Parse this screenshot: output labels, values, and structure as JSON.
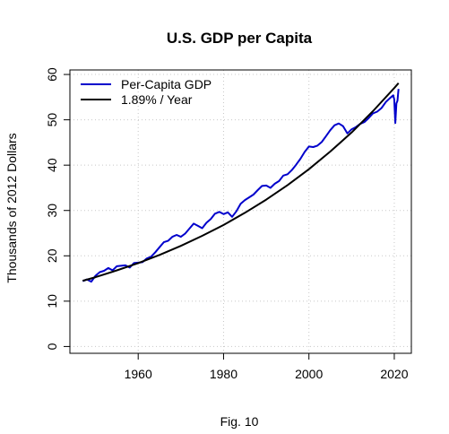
{
  "chart_data": {
    "type": "line",
    "title": "U.S. GDP per Capita",
    "xlabel": "",
    "ylabel": "Thousands of 2012 Dollars",
    "caption": "Fig. 10",
    "xlim": [
      1944,
      2024
    ],
    "ylim": [
      -1.5,
      61
    ],
    "x_ticks": [
      1960,
      1980,
      2000,
      2020
    ],
    "y_ticks": [
      0,
      10,
      20,
      30,
      40,
      50,
      60
    ],
    "grid": true,
    "legend_position": "top-left",
    "series": [
      {
        "name": "Per-Capita GDP",
        "color": "#0000cc",
        "x": [
          1947,
          1948,
          1949,
          1950,
          1951,
          1952,
          1953,
          1954,
          1955,
          1956,
          1957,
          1958,
          1959,
          1960,
          1961,
          1962,
          1963,
          1964,
          1965,
          1966,
          1967,
          1968,
          1969,
          1970,
          1971,
          1972,
          1973,
          1974,
          1975,
          1976,
          1977,
          1978,
          1979,
          1980,
          1981,
          1982,
          1983,
          1984,
          1985,
          1986,
          1987,
          1988,
          1989,
          1990,
          1991,
          1992,
          1993,
          1994,
          1995,
          1996,
          1997,
          1998,
          1999,
          2000,
          2001,
          2002,
          2003,
          2004,
          2005,
          2006,
          2007,
          2008,
          2009,
          2010,
          2011,
          2012,
          2013,
          2014,
          2015,
          2016,
          2017,
          2018,
          2019,
          2019.75,
          2020,
          2020.25,
          2020.5,
          2020.75,
          2021
        ],
        "values": [
          14.4,
          14.8,
          14.3,
          15.6,
          16.4,
          16.7,
          17.3,
          16.8,
          17.7,
          17.8,
          17.9,
          17.4,
          18.4,
          18.5,
          18.6,
          19.4,
          19.8,
          20.8,
          21.9,
          23.0,
          23.3,
          24.2,
          24.6,
          24.2,
          24.9,
          26.0,
          27.1,
          26.6,
          26.1,
          27.3,
          28.1,
          29.3,
          29.7,
          29.2,
          29.6,
          28.6,
          29.8,
          31.5,
          32.3,
          32.9,
          33.5,
          34.5,
          35.4,
          35.5,
          35.0,
          35.9,
          36.5,
          37.7,
          38.0,
          38.9,
          40.1,
          41.4,
          42.9,
          44.1,
          44.0,
          44.3,
          45.1,
          46.4,
          47.7,
          48.8,
          49.2,
          48.6,
          47.0,
          47.9,
          48.4,
          49.1,
          49.5,
          50.4,
          51.4,
          51.8,
          52.6,
          53.9,
          54.8,
          55.4,
          54.5,
          49.3,
          53.6,
          54.2,
          56.8
        ]
      },
      {
        "name": "1.89% / Year",
        "color": "#000000",
        "x": [
          1947,
          1950,
          1955,
          1960,
          1965,
          1970,
          1975,
          1980,
          1985,
          1990,
          1995,
          2000,
          2005,
          2010,
          2015,
          2020,
          2021
        ],
        "values": [
          14.5,
          15.3,
          16.8,
          18.4,
          20.2,
          22.2,
          24.4,
          26.8,
          29.5,
          32.4,
          35.6,
          39.1,
          43.0,
          47.2,
          51.9,
          57.0,
          58.1
        ]
      }
    ]
  }
}
